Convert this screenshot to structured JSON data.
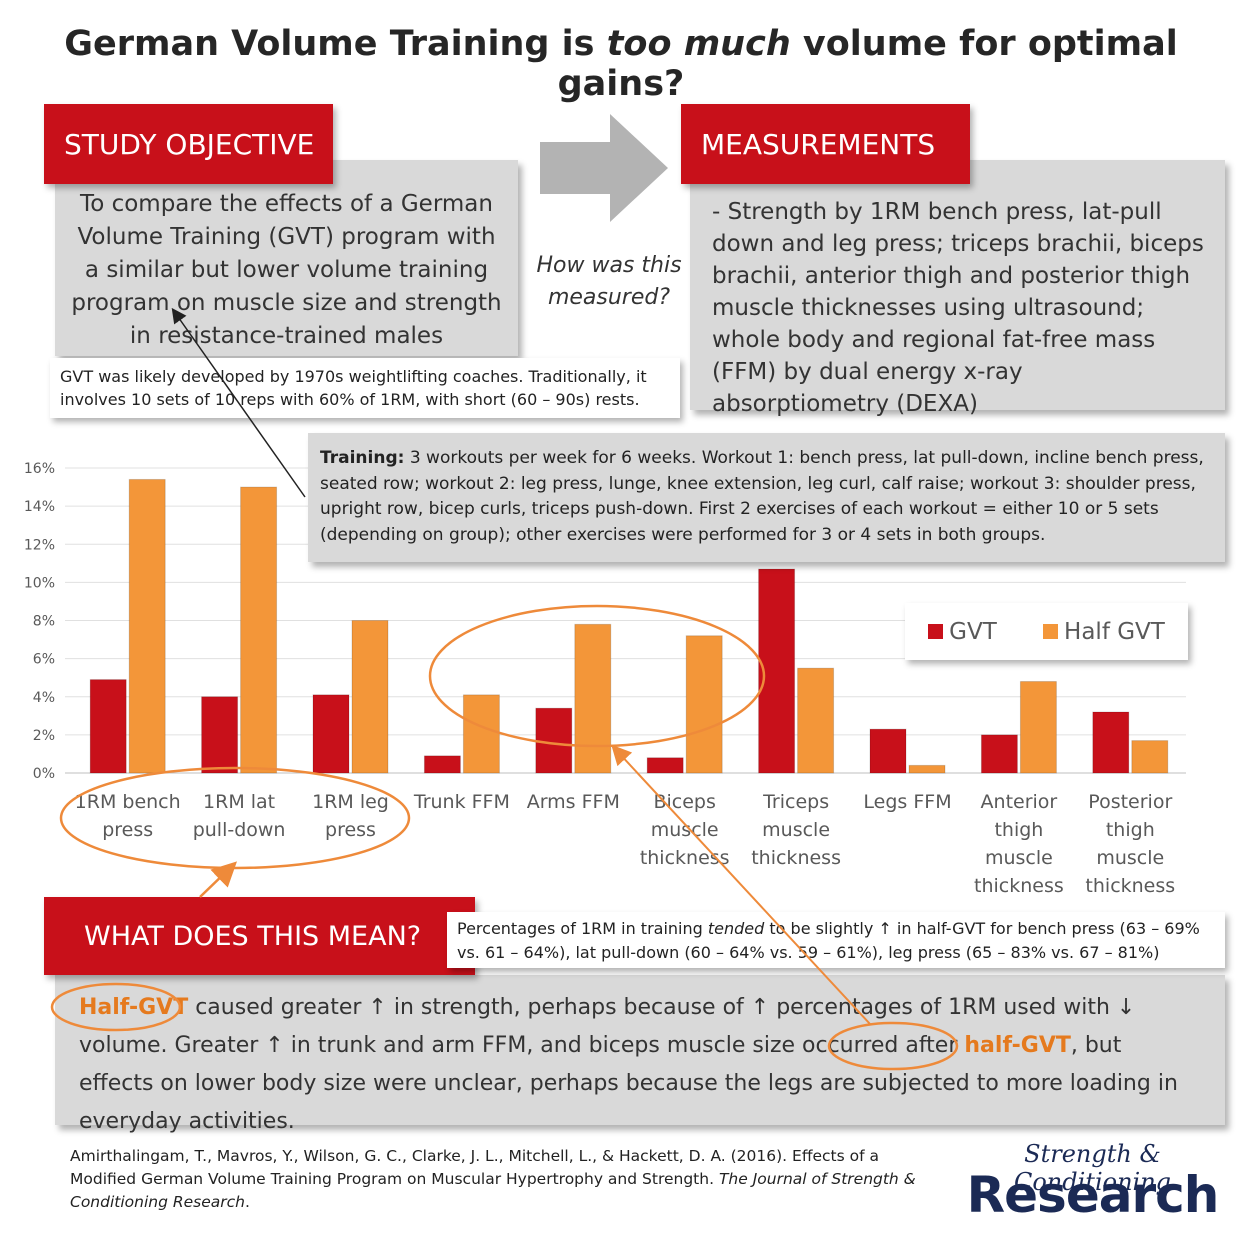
{
  "title": {
    "before": "German Volume Training is ",
    "emphasis": "too much",
    "after": " volume for optimal gains?"
  },
  "study_objective": {
    "heading": "STUDY OBJECTIVE",
    "text": "To compare the effects of a German Volume Training (GVT) program with a similar but lower volume training program on muscle size and strength in resistance-trained males"
  },
  "connector_question": "How was this measured?",
  "measurements": {
    "heading": "MEASUREMENTS",
    "text": "- Strength by 1RM bench press, lat-pull down and leg press; triceps brachii, biceps brachii, anterior thigh and posterior thigh muscle thicknesses using ultrasound; whole body and regional fat-free mass (FFM) by dual energy x-ray absorptiometry (DEXA)"
  },
  "gvt_note": "GVT was likely developed by 1970s weightlifting coaches. Traditionally, it involves 10 sets of 10 reps with 60% of 1RM, with short (60 – 90s) rests.",
  "training": {
    "label": "Training:",
    "text": " 3 workouts per week for 6 weeks. Workout 1: bench press, lat pull-down, incline bench press, seated row; workout 2: leg press, lunge, knee extension, leg curl, calf raise; workout 3: shoulder press, upright row, bicep curls, triceps push-down. First 2 exercises of each workout = either 10 or 5 sets (depending on group); other exercises were performed for 3 or 4 sets in both groups."
  },
  "chart_data": {
    "type": "bar",
    "categories": [
      "1RM bench press",
      "1RM lat pull-down",
      "1RM leg press",
      "Trunk FFM",
      "Arms FFM",
      "Biceps muscle thickness",
      "Triceps muscle thickness",
      "Legs FFM",
      "Anterior thigh muscle thickness",
      "Posterior thigh muscle thickness"
    ],
    "series": [
      {
        "name": "GVT",
        "color": "#c8101a",
        "values": [
          4.9,
          4.0,
          4.1,
          0.9,
          3.4,
          0.8,
          10.7,
          2.3,
          2.0,
          3.2
        ]
      },
      {
        "name": "Half GVT",
        "color": "#f39639",
        "values": [
          15.4,
          15.0,
          8.0,
          4.1,
          7.8,
          7.2,
          5.5,
          0.4,
          4.8,
          1.7
        ]
      }
    ],
    "ylim": [
      0,
      16
    ],
    "yticks": [
      {
        "value": 0,
        "label": "0%"
      },
      {
        "value": 2,
        "label": "2%"
      },
      {
        "value": 4,
        "label": "4%"
      },
      {
        "value": 6,
        "label": "6%"
      },
      {
        "value": 8,
        "label": "8%"
      },
      {
        "value": 10,
        "label": "10%"
      },
      {
        "value": 12,
        "label": "12%"
      },
      {
        "value": 14,
        "label": "14%"
      },
      {
        "value": 16,
        "label": "16%"
      }
    ],
    "grid": true,
    "legend": "upper right"
  },
  "meaning": {
    "heading": "WHAT DOES THIS MEAN?",
    "note": {
      "before": "Percentages of 1RM in training ",
      "emphasis": "tended",
      "after": " to be slightly ↑ in half-GVT for bench press (63 – 69% vs. 61 – 64%), lat pull-down (60 – 64% vs. 59 – 61%), leg press (65 – 83% vs. 67 – 81%)"
    },
    "paragraph": {
      "highlight1": "Half-GVT",
      "part1": " caused greater ↑ in strength, perhaps because of ↑ percentages of 1RM used with ↓ volume. Greater ↑ in trunk and arm FFM, and biceps muscle size occurred after ",
      "highlight2": "half-GVT",
      "part2": ", but effects on lower body size were unclear, perhaps because the legs are subjected to more loading in everyday activities."
    }
  },
  "citation": {
    "before": "Amirthalingam, T., Mavros, Y., Wilson, G. C., Clarke, J. L., Mitchell, L., & Hackett, D. A. (2016). Effects of a Modified German Volume Training Program on Muscular Hypertrophy and Strength. ",
    "journal": "The Journal of Strength & Conditioning Research",
    "after": "."
  },
  "logo": {
    "script": "Strength & Conditioning",
    "name": "Research"
  }
}
